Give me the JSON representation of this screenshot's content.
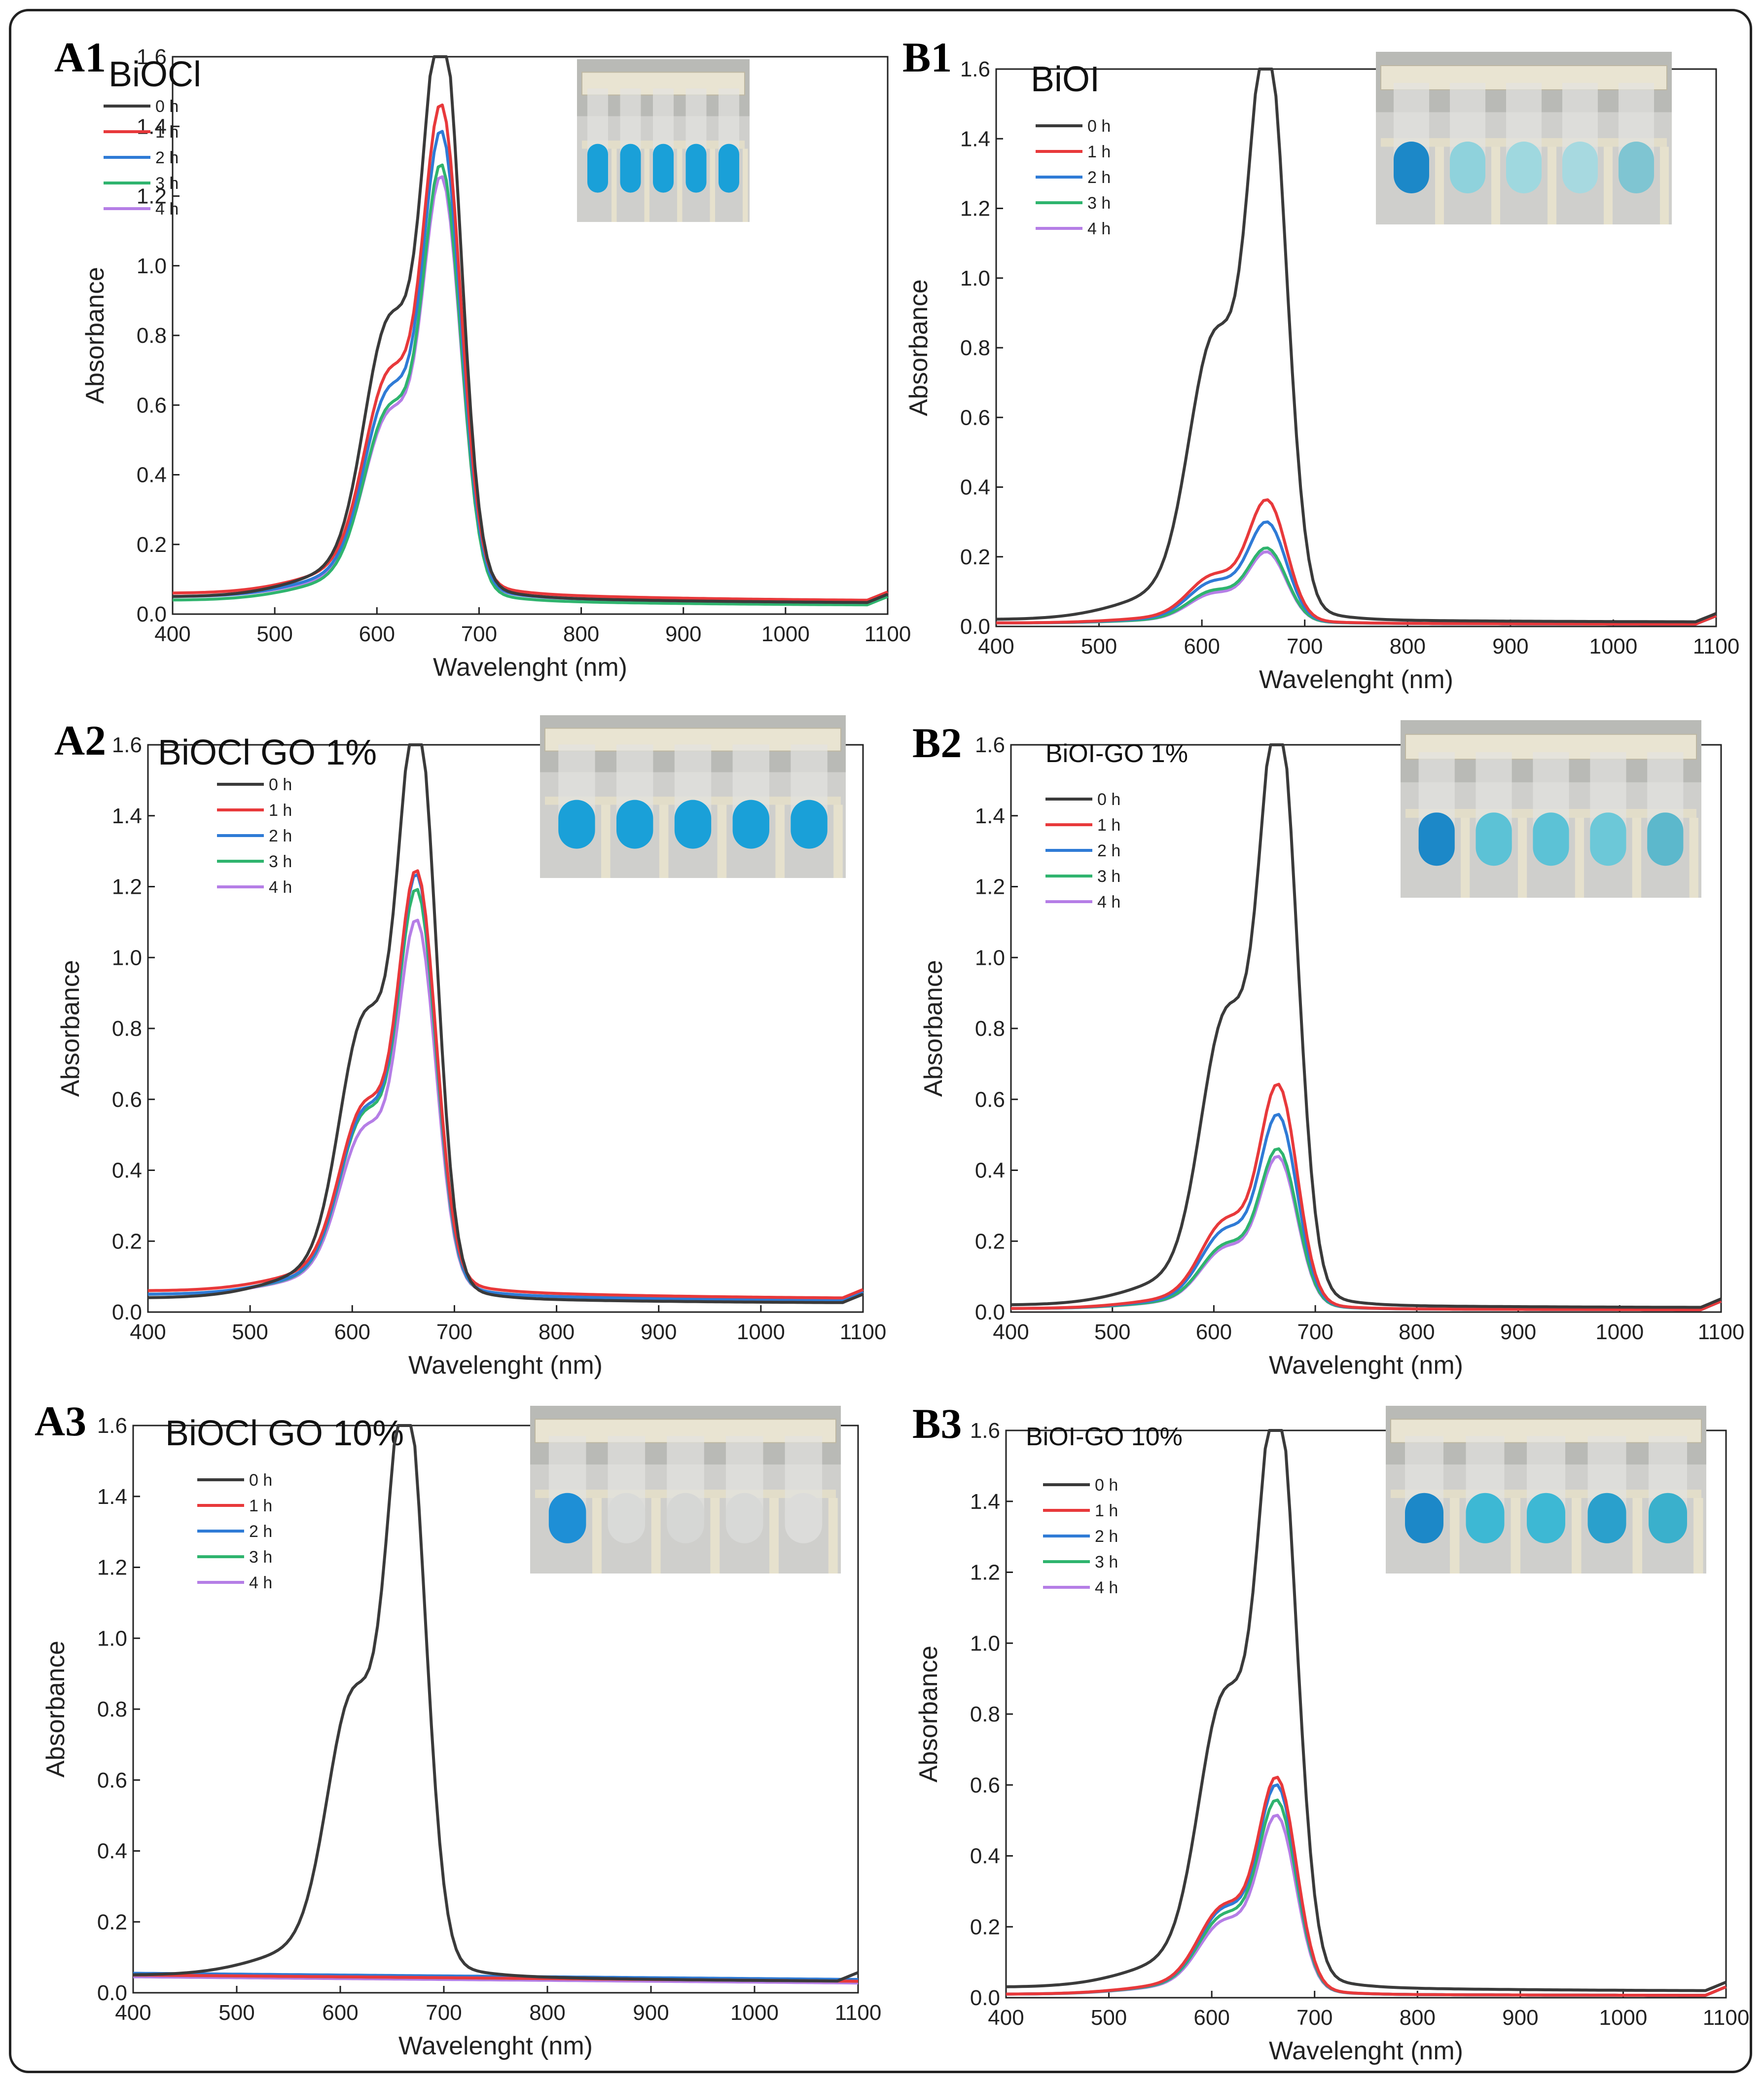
{
  "colors": {
    "0 h": "#3a3a3a",
    "1 h": "#e8393b",
    "2 h": "#2f7bd6",
    "3 h": "#2fb46e",
    "4 h": "#b57ee6"
  },
  "chart_data": [
    {
      "panel": "A1",
      "title": "BiOCl",
      "type": "line",
      "xlabel": "Wavelenght (nm)",
      "ylabel": "Absorbance",
      "xlim": [
        400,
        1100
      ],
      "ylim": [
        0,
        1.6
      ],
      "xticks": [
        400,
        500,
        600,
        700,
        800,
        900,
        1000,
        1100
      ],
      "yticks": [
        "0.0",
        "0.2",
        "0.4",
        "0.6",
        "0.8",
        "1.0",
        "1.2",
        "1.4",
        "1.6"
      ],
      "legend": [
        "0 h",
        "1 h",
        "2 h",
        "3 h",
        "4 h"
      ],
      "inset": "photo of five test tubes with blue dye",
      "series": [
        {
          "name": "0 h",
          "base": 0.05,
          "peak": 1.55,
          "shoulder": 0.95
        },
        {
          "name": "1 h",
          "base": 0.06,
          "peak": 1.3,
          "shoulder": 0.75
        },
        {
          "name": "2 h",
          "base": 0.05,
          "peak": 1.24,
          "shoulder": 0.7
        },
        {
          "name": "3 h",
          "base": 0.04,
          "peak": 1.16,
          "shoulder": 0.65
        },
        {
          "name": "4 h",
          "base": 0.05,
          "peak": 1.12,
          "shoulder": 0.62
        }
      ]
    },
    {
      "panel": "B1",
      "title": "BiOI",
      "type": "line",
      "xlabel": "Wavelenght (nm)",
      "ylabel": "Absorbance",
      "xlim": [
        400,
        1100
      ],
      "ylim": [
        0,
        1.6
      ],
      "xticks": [
        400,
        500,
        600,
        700,
        800,
        900,
        1000,
        1100
      ],
      "yticks": [
        "0.0",
        "0.2",
        "0.4",
        "0.6",
        "0.8",
        "1.0",
        "1.2",
        "1.4",
        "1.6"
      ],
      "legend": [
        "0 h",
        "1 h",
        "2 h",
        "3 h",
        "4 h"
      ],
      "inset": "photo of five test tubes fading from blue",
      "series": [
        {
          "name": "0 h",
          "base": 0.02,
          "peak": 1.56,
          "shoulder": 0.98
        },
        {
          "name": "1 h",
          "base": 0.01,
          "peak": 0.33,
          "shoulder": 0.16
        },
        {
          "name": "2 h",
          "base": 0.01,
          "peak": 0.27,
          "shoulder": 0.14
        },
        {
          "name": "3 h",
          "base": 0.01,
          "peak": 0.2,
          "shoulder": 0.11
        },
        {
          "name": "4 h",
          "base": 0.01,
          "peak": 0.19,
          "shoulder": 0.1
        }
      ]
    },
    {
      "panel": "A2",
      "title": "BiOCl GO 1%",
      "type": "line",
      "xlabel": "Wavelenght (nm)",
      "ylabel": "Absorbance",
      "xlim": [
        400,
        1100
      ],
      "ylim": [
        0,
        1.6
      ],
      "xticks": [
        400,
        500,
        600,
        700,
        800,
        900,
        1000,
        1100
      ],
      "yticks": [
        "0.0",
        "0.2",
        "0.4",
        "0.6",
        "0.8",
        "1.0",
        "1.2",
        "1.4",
        "1.6"
      ],
      "legend": [
        "0 h",
        "1 h",
        "2 h",
        "3 h",
        "4 h"
      ],
      "inset": "photo of five test tubes with blue dye",
      "series": [
        {
          "name": "0 h",
          "base": 0.04,
          "peak": 1.54,
          "shoulder": 0.95
        },
        {
          "name": "1 h",
          "base": 0.06,
          "peak": 1.1,
          "shoulder": 0.62
        },
        {
          "name": "2 h",
          "base": 0.05,
          "peak": 1.1,
          "shoulder": 0.61
        },
        {
          "name": "3 h",
          "base": 0.05,
          "peak": 1.06,
          "shoulder": 0.6
        },
        {
          "name": "4 h",
          "base": 0.05,
          "peak": 0.98,
          "shoulder": 0.55
        }
      ]
    },
    {
      "panel": "B2",
      "title": "BiOI-GO 1%",
      "type": "line",
      "xlabel": "Wavelenght (nm)",
      "ylabel": "Absorbance",
      "xlim": [
        400,
        1100
      ],
      "ylim": [
        0,
        1.6
      ],
      "xticks": [
        400,
        500,
        600,
        700,
        800,
        900,
        1000,
        1100
      ],
      "yticks": [
        "0.0",
        "0.2",
        "0.4",
        "0.6",
        "0.8",
        "1.0",
        "1.2",
        "1.4",
        "1.6"
      ],
      "legend": [
        "0 h",
        "1 h",
        "2 h",
        "3 h",
        "4 h"
      ],
      "inset": "photo of five test tubes fading from blue",
      "series": [
        {
          "name": "0 h",
          "base": 0.02,
          "peak": 1.57,
          "shoulder": 0.99
        },
        {
          "name": "1 h",
          "base": 0.01,
          "peak": 0.59,
          "shoulder": 0.29
        },
        {
          "name": "2 h",
          "base": 0.01,
          "peak": 0.51,
          "shoulder": 0.26
        },
        {
          "name": "3 h",
          "base": 0.01,
          "peak": 0.42,
          "shoulder": 0.21
        },
        {
          "name": "4 h",
          "base": 0.01,
          "peak": 0.4,
          "shoulder": 0.2
        }
      ]
    },
    {
      "panel": "A3",
      "title": "BiOCl GO 10%",
      "type": "line",
      "xlabel": "Wavelenght (nm)",
      "ylabel": "Absorbance",
      "xlim": [
        400,
        1100
      ],
      "ylim": [
        0,
        1.6
      ],
      "xticks": [
        400,
        500,
        600,
        700,
        800,
        900,
        1000,
        1100
      ],
      "yticks": [
        "0.0",
        "0.2",
        "0.4",
        "0.6",
        "0.8",
        "1.0",
        "1.2",
        "1.4",
        "1.6"
      ],
      "legend": [
        "0 h",
        "1 h",
        "2 h",
        "3 h",
        "4 h"
      ],
      "inset": "photo of five test tubes, first blue, rest nearly clear",
      "series": [
        {
          "name": "0 h",
          "base": 0.05,
          "peak": 1.55,
          "shoulder": 0.95
        },
        {
          "name": "1 h",
          "base": 0.05,
          "peak": 0.0,
          "shoulder": 0.0
        },
        {
          "name": "2 h",
          "base": 0.055,
          "peak": 0.0,
          "shoulder": 0.0
        },
        {
          "name": "3 h",
          "base": 0.05,
          "peak": 0.0,
          "shoulder": 0.0
        },
        {
          "name": "4 h",
          "base": 0.045,
          "peak": 0.0,
          "shoulder": 0.0
        }
      ]
    },
    {
      "panel": "B3",
      "title": "BiOI-GO 10%",
      "type": "line",
      "xlabel": "Wavelenght (nm)",
      "ylabel": "Absorbance",
      "xlim": [
        400,
        1100
      ],
      "ylim": [
        0,
        1.6
      ],
      "xticks": [
        400,
        500,
        600,
        700,
        800,
        900,
        1000,
        1100
      ],
      "yticks": [
        "0.0",
        "0.2",
        "0.4",
        "0.6",
        "0.8",
        "1.0",
        "1.2",
        "1.4",
        "1.6"
      ],
      "legend": [
        "0 h",
        "1 h",
        "2 h",
        "3 h",
        "4 h"
      ],
      "inset": "photo of five test tubes fading from blue",
      "series": [
        {
          "name": "0 h",
          "base": 0.03,
          "peak": 1.57,
          "shoulder": 0.99
        },
        {
          "name": "1 h",
          "base": 0.01,
          "peak": 0.57,
          "shoulder": 0.29
        },
        {
          "name": "2 h",
          "base": 0.01,
          "peak": 0.55,
          "shoulder": 0.28
        },
        {
          "name": "3 h",
          "base": 0.01,
          "peak": 0.51,
          "shoulder": 0.26
        },
        {
          "name": "4 h",
          "base": 0.01,
          "peak": 0.47,
          "shoulder": 0.24
        }
      ]
    }
  ]
}
